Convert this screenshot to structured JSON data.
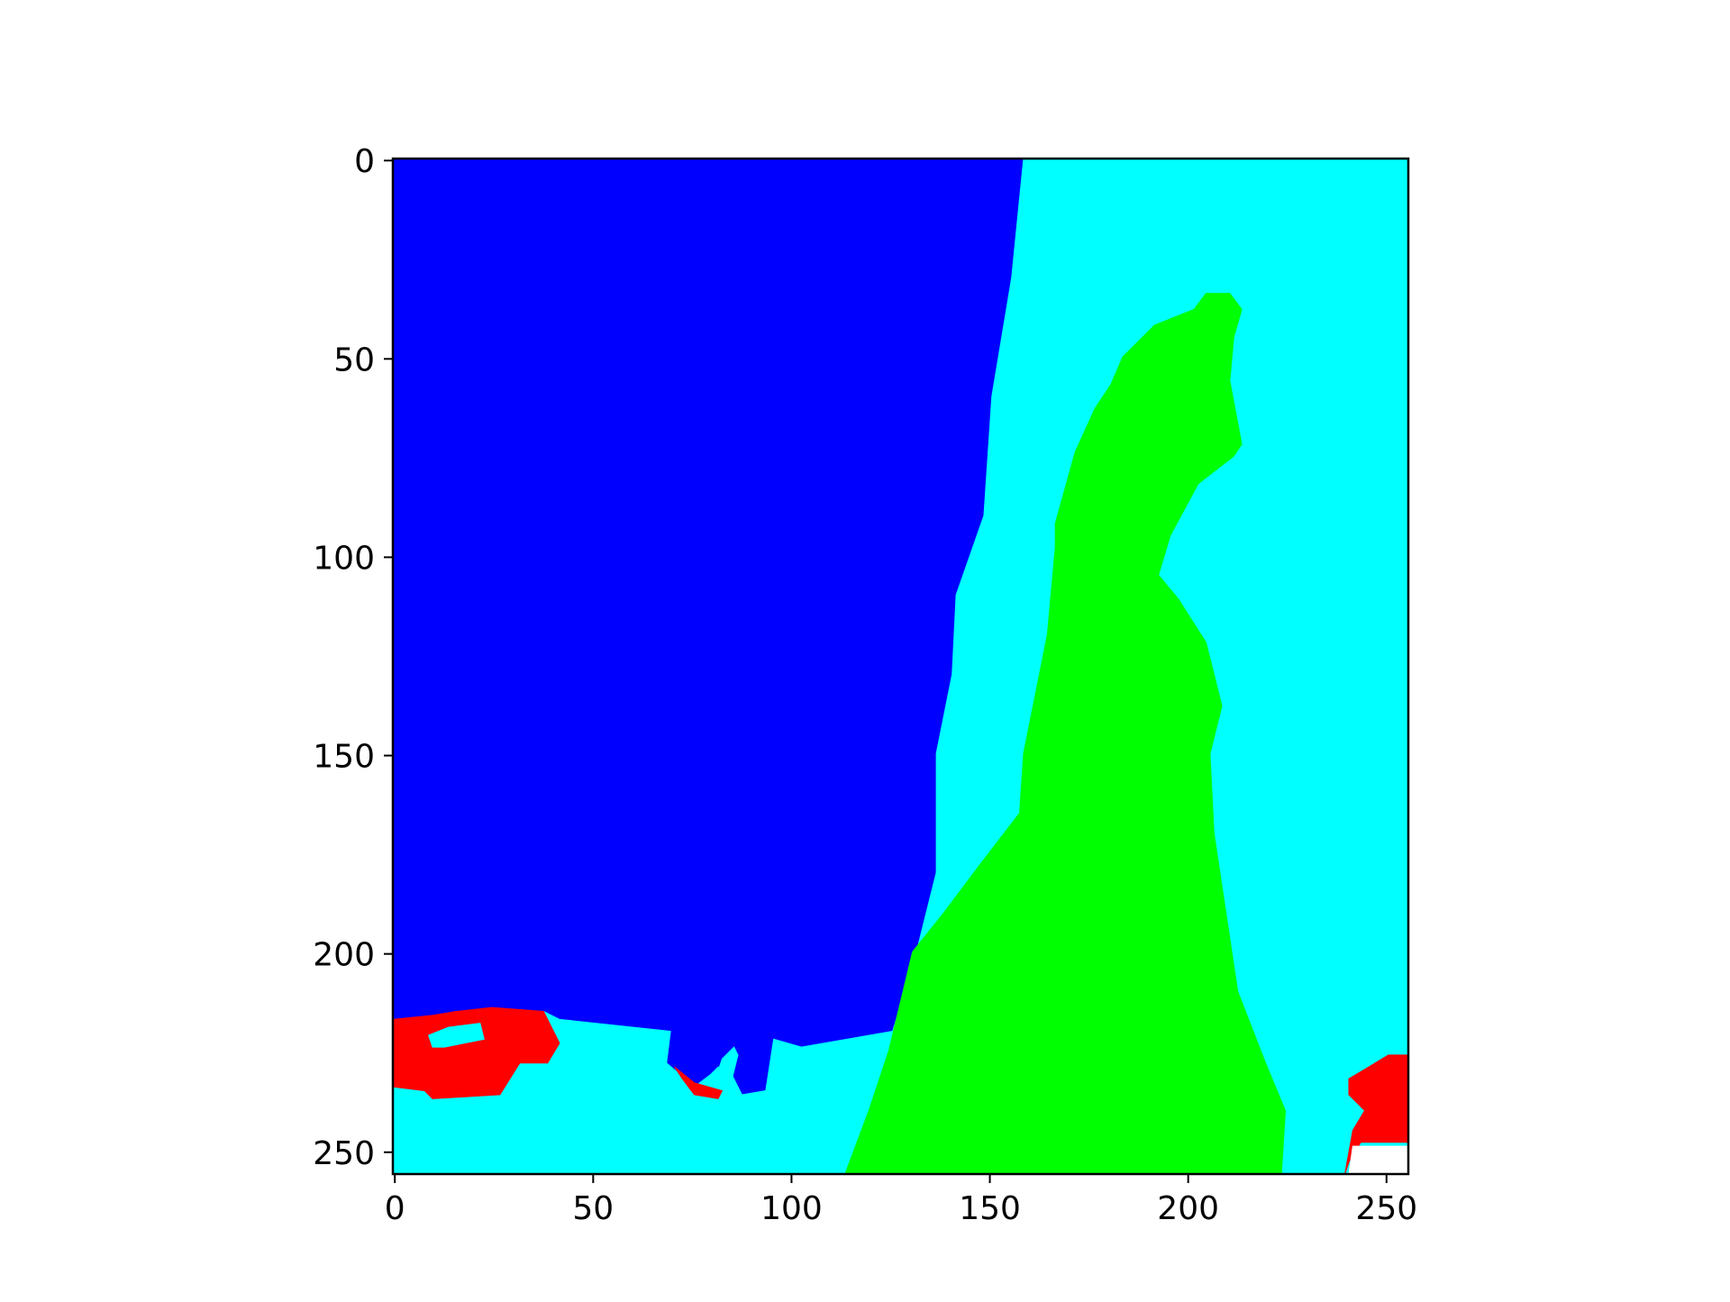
{
  "chart_data": {
    "type": "heatmap",
    "title": "",
    "xlabel": "",
    "ylabel": "",
    "image_size": [
      256,
      256
    ],
    "xlim": [
      0,
      255
    ],
    "ylim": [
      255,
      0
    ],
    "y_axis_inverted": true,
    "grid": false,
    "legend": "none",
    "xticks": [
      0,
      50,
      100,
      150,
      200,
      250
    ],
    "yticks": [
      0,
      50,
      100,
      150,
      200,
      250
    ],
    "xtick_labels": [
      "0",
      "50",
      "100",
      "150",
      "200",
      "250"
    ],
    "ytick_labels": [
      "0",
      "50",
      "100",
      "150",
      "200",
      "250"
    ],
    "regions": [
      {
        "class": "blue",
        "color": "#0000ff",
        "polygon": [
          [
            0,
            0
          ],
          [
            159,
            0
          ],
          [
            156,
            30
          ],
          [
            151,
            60
          ],
          [
            149,
            90
          ],
          [
            142,
            110
          ],
          [
            141,
            130
          ],
          [
            137,
            150
          ],
          [
            137,
            180
          ],
          [
            132,
            200
          ],
          [
            126,
            220
          ],
          [
            103,
            224
          ],
          [
            96,
            222
          ],
          [
            94,
            235
          ],
          [
            88,
            236
          ],
          [
            85,
            230
          ],
          [
            82,
            229
          ],
          [
            80,
            231
          ],
          [
            76,
            234
          ],
          [
            69,
            228
          ],
          [
            70,
            220
          ],
          [
            42,
            217
          ],
          [
            38,
            215
          ],
          [
            0,
            217
          ]
        ]
      },
      {
        "class": "cyan",
        "color": "#00ffff",
        "polygon": [
          [
            159,
            0
          ],
          [
            255,
            0
          ],
          [
            255,
            255
          ],
          [
            0,
            255
          ],
          [
            0,
            217
          ],
          [
            38,
            215
          ],
          [
            42,
            217
          ],
          [
            70,
            220
          ],
          [
            69,
            228
          ],
          [
            76,
            234
          ],
          [
            80,
            231
          ],
          [
            82,
            229
          ],
          [
            85,
            230
          ],
          [
            88,
            236
          ],
          [
            94,
            235
          ],
          [
            96,
            222
          ],
          [
            103,
            224
          ],
          [
            126,
            220
          ],
          [
            132,
            200
          ],
          [
            137,
            180
          ],
          [
            137,
            150
          ],
          [
            141,
            130
          ],
          [
            142,
            110
          ],
          [
            149,
            90
          ],
          [
            151,
            60
          ],
          [
            156,
            30
          ]
        ]
      },
      {
        "class": "green",
        "color": "#00ff00",
        "polygon": [
          [
            114,
            255
          ],
          [
            120,
            240
          ],
          [
            125,
            225
          ],
          [
            131,
            200
          ],
          [
            139,
            190
          ],
          [
            148,
            178
          ],
          [
            158,
            165
          ],
          [
            159,
            150
          ],
          [
            165,
            120
          ],
          [
            167,
            98
          ],
          [
            167,
            92
          ],
          [
            172,
            74
          ],
          [
            177,
            63
          ],
          [
            181,
            57
          ],
          [
            184,
            50
          ],
          [
            192,
            42
          ],
          [
            202,
            38
          ],
          [
            205,
            34
          ],
          [
            211,
            34
          ],
          [
            214,
            38
          ],
          [
            212,
            45
          ],
          [
            211,
            56
          ],
          [
            214,
            72
          ],
          [
            212,
            75
          ],
          [
            203,
            82
          ],
          [
            196,
            95
          ],
          [
            193,
            105
          ],
          [
            198,
            111
          ],
          [
            205,
            122
          ],
          [
            209,
            138
          ],
          [
            206,
            150
          ],
          [
            207,
            170
          ],
          [
            210,
            190
          ],
          [
            213,
            210
          ],
          [
            220,
            228
          ],
          [
            225,
            240
          ],
          [
            224,
            255
          ]
        ]
      },
      {
        "class": "red",
        "color": "#ff0000",
        "polygon": [
          [
            0,
            217
          ],
          [
            10,
            216
          ],
          [
            16,
            215
          ],
          [
            25,
            214
          ],
          [
            38,
            215
          ],
          [
            42,
            223
          ],
          [
            39,
            228
          ],
          [
            32,
            228
          ],
          [
            27,
            236
          ],
          [
            10,
            237
          ],
          [
            8,
            235
          ],
          [
            0,
            234
          ]
        ]
      },
      {
        "class": "red",
        "color": "#ff0000",
        "polygon": [
          [
            71,
            229
          ],
          [
            76,
            233
          ],
          [
            83,
            235
          ],
          [
            82,
            237
          ],
          [
            76,
            236
          ],
          [
            73,
            232
          ]
        ]
      },
      {
        "class": "red",
        "color": "#ff0000",
        "polygon": [
          [
            241,
            232
          ],
          [
            246,
            229
          ],
          [
            251,
            226
          ],
          [
            255,
            226
          ],
          [
            255,
            248
          ],
          [
            244,
            248
          ],
          [
            241,
            253
          ],
          [
            240,
            255
          ],
          [
            242,
            245
          ],
          [
            245,
            240
          ],
          [
            241,
            236
          ]
        ]
      },
      {
        "class": "white",
        "color": "#ffffff",
        "polygon": [
          [
            242,
            249
          ],
          [
            255,
            249
          ],
          [
            255,
            255
          ],
          [
            241,
            255
          ]
        ]
      },
      {
        "class": "cyan",
        "color": "#00ffff",
        "polygon": [
          [
            9,
            221
          ],
          [
            14,
            219
          ],
          [
            22,
            218
          ],
          [
            23,
            222
          ],
          [
            13,
            224
          ],
          [
            10,
            224
          ]
        ]
      },
      {
        "class": "cyan",
        "color": "#00ffff",
        "polygon": [
          [
            81,
            233
          ],
          [
            83,
            227
          ],
          [
            86,
            224
          ],
          [
            87,
            226
          ],
          [
            85,
            234
          ]
        ]
      }
    ]
  }
}
